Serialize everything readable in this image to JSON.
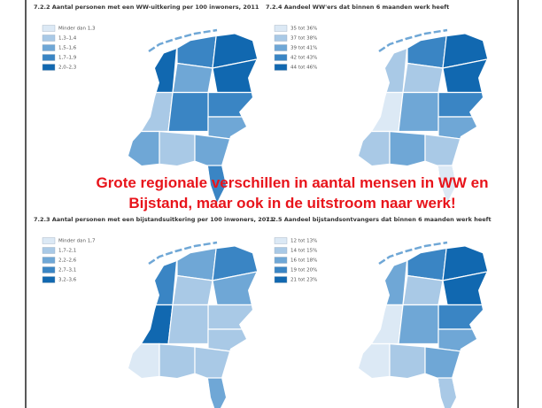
{
  "overlay": {
    "lines": [
      "Grote regionale verschillen in aantal mensen in WW en",
      "Bijstand, maar ook in de uitstroom naar werk!"
    ]
  },
  "panels": [
    {
      "title": "7.2.2 Aantal personen met een WW-uitkering per 100 inwoners, 2011",
      "legend": [
        {
          "label": "Minder dan 1,3",
          "color": "#dce9f5"
        },
        {
          "label": "1,3–1,4",
          "color": "#a9c9e6"
        },
        {
          "label": "1,5–1,6",
          "color": "#6fa7d6"
        },
        {
          "label": "1,7–1,9",
          "color": "#3a85c4"
        },
        {
          "label": "2,0–2,3",
          "color": "#1168b0"
        }
      ]
    },
    {
      "title": "7.2.4 Aandeel WW'ers dat binnen 6 maanden werk heeft",
      "legend": [
        {
          "label": "35 tot 36%",
          "color": "#dce9f5"
        },
        {
          "label": "37 tot 38%",
          "color": "#a9c9e6"
        },
        {
          "label": "39 tot 41%",
          "color": "#6fa7d6"
        },
        {
          "label": "42 tot 43%",
          "color": "#3a85c4"
        },
        {
          "label": "44 tot 46%",
          "color": "#1168b0"
        }
      ]
    },
    {
      "title": "7.2.3 Aantal personen met een bijstandsuitkering per 100 inwoners, 2011",
      "legend": [
        {
          "label": "Minder dan 1,7",
          "color": "#dce9f5"
        },
        {
          "label": "1,7–2,1",
          "color": "#a9c9e6"
        },
        {
          "label": "2,2–2,6",
          "color": "#6fa7d6"
        },
        {
          "label": "2,7–3,1",
          "color": "#3a85c4"
        },
        {
          "label": "3,2–3,6",
          "color": "#1168b0"
        }
      ]
    },
    {
      "title": "7.2.5 Aandeel bijstandsontvangers dat binnen 6 maanden werk heeft",
      "legend": [
        {
          "label": "12 tot 13%",
          "color": "#dce9f5"
        },
        {
          "label": "14 tot 15%",
          "color": "#a9c9e6"
        },
        {
          "label": "16 tot 18%",
          "color": "#6fa7d6"
        },
        {
          "label": "19 tot 20%",
          "color": "#3a85c4"
        },
        {
          "label": "21 tot 23%",
          "color": "#1168b0"
        }
      ]
    }
  ]
}
